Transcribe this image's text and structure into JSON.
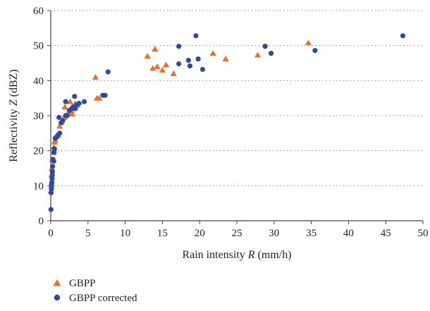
{
  "chart_data": {
    "type": "scatter",
    "title": "",
    "xlabel": "Rain intensity R (mm/h)",
    "xlabel_parts": [
      "Rain intensity ",
      "R",
      " (mm/h)"
    ],
    "ylabel": "Reflectivity Z (dBZ)",
    "ylabel_parts": [
      "Reflectivity ",
      "Z",
      " (dBZ)"
    ],
    "xlim": [
      0,
      50
    ],
    "ylim": [
      0,
      60
    ],
    "xticks": [
      0,
      5,
      10,
      15,
      20,
      25,
      30,
      35,
      40,
      45,
      50
    ],
    "yticks": [
      0,
      10,
      20,
      30,
      40,
      50,
      60
    ],
    "grid": "horizontal dotted",
    "legend_position": "bottom-left",
    "series": [
      {
        "name": "GBPP",
        "marker": "triangle",
        "color": "#e8702a",
        "points": [
          [
            0.02,
            8.5
          ],
          [
            0.05,
            10.5
          ],
          [
            0.1,
            13
          ],
          [
            0.15,
            15
          ],
          [
            0.2,
            17.5
          ],
          [
            0.3,
            19.5
          ],
          [
            0.4,
            21
          ],
          [
            0.5,
            22.5
          ],
          [
            0.6,
            23
          ],
          [
            0.8,
            24
          ],
          [
            1.0,
            24.5
          ],
          [
            1.2,
            27
          ],
          [
            1.4,
            28
          ],
          [
            1.6,
            29
          ],
          [
            1.8,
            29.5
          ],
          [
            2.0,
            30
          ],
          [
            2.3,
            30.5
          ],
          [
            2.5,
            31
          ],
          [
            2.8,
            31.5
          ],
          [
            3.0,
            32.5
          ],
          [
            3.3,
            33.5
          ],
          [
            3.6,
            33
          ],
          [
            2.6,
            34
          ],
          [
            1.9,
            32.5
          ],
          [
            2.9,
            30.5
          ],
          [
            6.0,
            41
          ],
          [
            6.2,
            35
          ],
          [
            6.5,
            35
          ],
          [
            13.0,
            47
          ],
          [
            13.7,
            43.5
          ],
          [
            14.0,
            49
          ],
          [
            14.3,
            44
          ],
          [
            15.0,
            43
          ],
          [
            15.5,
            44.5
          ],
          [
            16.5,
            42
          ],
          [
            21.8,
            47.8
          ],
          [
            23.5,
            46.2
          ],
          [
            27.8,
            47.3
          ],
          [
            34.6,
            50.8
          ]
        ]
      },
      {
        "name": "GBPP corrected",
        "marker": "circle",
        "color": "#2e4aa0",
        "points": [
          [
            0.03,
            3.2
          ],
          [
            0.05,
            8
          ],
          [
            0.08,
            9
          ],
          [
            0.1,
            9.5
          ],
          [
            0.12,
            10.5
          ],
          [
            0.15,
            11
          ],
          [
            0.18,
            12
          ],
          [
            0.2,
            13
          ],
          [
            0.22,
            14
          ],
          [
            0.25,
            15.5
          ],
          [
            0.3,
            17.5
          ],
          [
            0.4,
            17
          ],
          [
            0.45,
            19.5
          ],
          [
            0.5,
            20.5
          ],
          [
            0.6,
            23.5
          ],
          [
            0.8,
            24
          ],
          [
            1.0,
            24.5
          ],
          [
            1.2,
            25
          ],
          [
            1.1,
            29.5
          ],
          [
            1.4,
            28
          ],
          [
            1.6,
            28.5
          ],
          [
            2.0,
            30
          ],
          [
            2.2,
            30
          ],
          [
            2.0,
            34
          ],
          [
            2.5,
            31.5
          ],
          [
            2.8,
            32
          ],
          [
            3.0,
            32.5
          ],
          [
            3.2,
            35.5
          ],
          [
            3.5,
            33
          ],
          [
            3.8,
            33.5
          ],
          [
            3.3,
            32
          ],
          [
            4.5,
            34
          ],
          [
            7.0,
            35.8
          ],
          [
            7.3,
            35.8
          ],
          [
            7.7,
            42.5
          ],
          [
            17.2,
            44.8
          ],
          [
            17.2,
            49.8
          ],
          [
            18.5,
            45.8
          ],
          [
            18.7,
            44.2
          ],
          [
            19.5,
            52.8
          ],
          [
            19.8,
            46.2
          ],
          [
            20.4,
            43.2
          ],
          [
            28.8,
            49.8
          ],
          [
            29.6,
            47.8
          ],
          [
            35.5,
            48.6
          ],
          [
            47.3,
            52.8
          ]
        ]
      }
    ]
  }
}
